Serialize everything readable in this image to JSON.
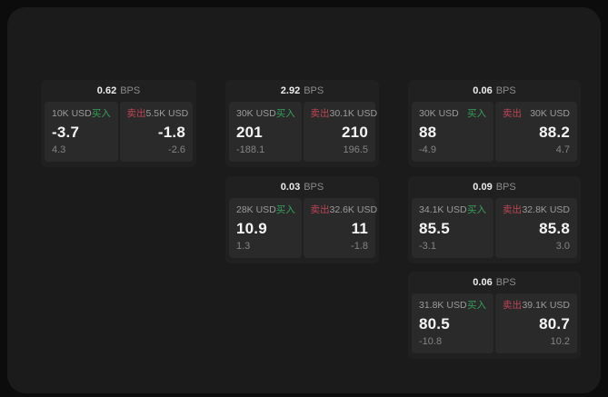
{
  "labels": {
    "bps_unit": "BPS",
    "buy": "买入",
    "sell": "卖出"
  },
  "colors": {
    "background": "#0c0c0c",
    "panel": "#1b1b1b",
    "card": "#202020",
    "tile": "#2a2a2a",
    "buy_green": "#35a05a",
    "sell_red": "#bf4455"
  },
  "cards": [
    {
      "bps": "0.62",
      "buy": {
        "amount": "10K USD",
        "price": "-3.7",
        "change": "4.3"
      },
      "sell": {
        "amount": "5.5K USD",
        "price": "-1.8",
        "change": "-2.6"
      }
    },
    {
      "bps": "2.92",
      "buy": {
        "amount": "30K USD",
        "price": "201",
        "change": "-188.1"
      },
      "sell": {
        "amount": "30.1K USD",
        "price": "210",
        "change": "196.5"
      }
    },
    {
      "bps": "0.06",
      "buy": {
        "amount": "30K USD",
        "price": "88",
        "change": "-4.9"
      },
      "sell": {
        "amount": "30K USD",
        "price": "88.2",
        "change": "4.7"
      }
    },
    {
      "bps": "0.03",
      "buy": {
        "amount": "28K USD",
        "price": "10.9",
        "change": "1.3"
      },
      "sell": {
        "amount": "32.6K USD",
        "price": "11",
        "change": "-1.8"
      }
    },
    {
      "bps": "0.09",
      "buy": {
        "amount": "34.1K USD",
        "price": "85.5",
        "change": "-3.1"
      },
      "sell": {
        "amount": "32.8K USD",
        "price": "85.8",
        "change": "3.0"
      }
    },
    {
      "bps": "0.06",
      "buy": {
        "amount": "31.8K USD",
        "price": "80.5",
        "change": "-10.8"
      },
      "sell": {
        "amount": "39.1K USD",
        "price": "80.7",
        "change": "10.2"
      }
    }
  ]
}
